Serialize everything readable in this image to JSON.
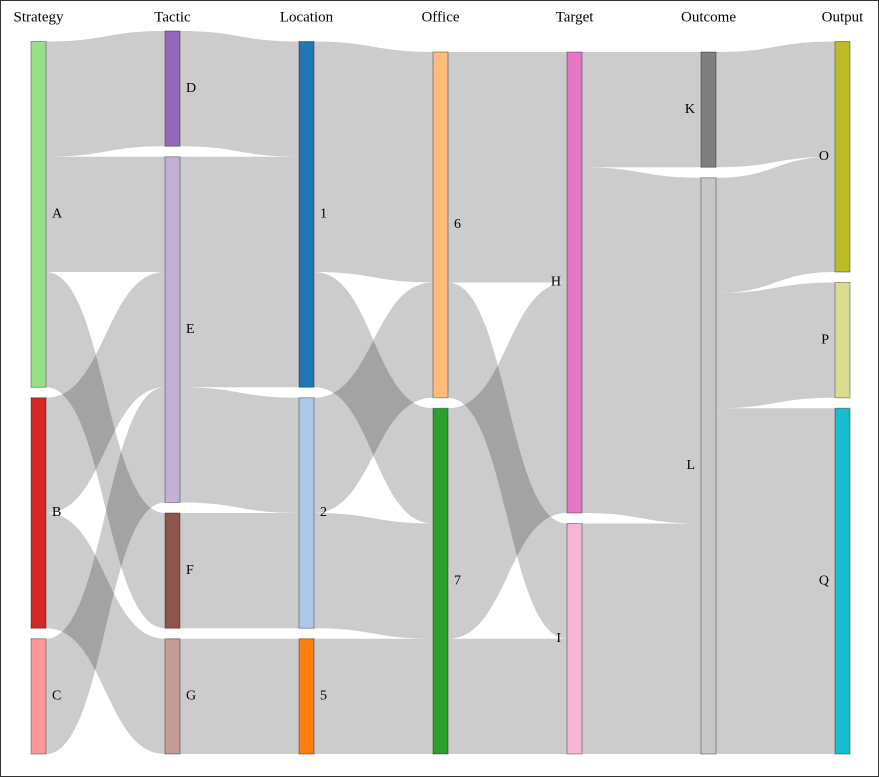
{
  "chart_data": {
    "type": "sankey",
    "columns": [
      "Strategy",
      "Tactic",
      "Location",
      "Office",
      "Target",
      "Outcome",
      "Output"
    ],
    "nodes": [
      {
        "name": "A",
        "column": 0,
        "color": "#98df8a"
      },
      {
        "name": "B",
        "column": 0,
        "color": "#d62728"
      },
      {
        "name": "C",
        "column": 0,
        "color": "#ff9896"
      },
      {
        "name": "D",
        "column": 1,
        "color": "#9467bd"
      },
      {
        "name": "E",
        "column": 1,
        "color": "#c5b0d5"
      },
      {
        "name": "F",
        "column": 1,
        "color": "#8c564b"
      },
      {
        "name": "G",
        "column": 1,
        "color": "#c49c94"
      },
      {
        "name": "1",
        "column": 2,
        "color": "#1f77b4"
      },
      {
        "name": "2",
        "column": 2,
        "color": "#aec7e8"
      },
      {
        "name": "5",
        "column": 2,
        "color": "#ff7f0e"
      },
      {
        "name": "6",
        "column": 3,
        "color": "#ffbb78"
      },
      {
        "name": "7",
        "column": 3,
        "color": "#2ca02c"
      },
      {
        "name": "H",
        "column": 4,
        "color": "#e377c2"
      },
      {
        "name": "I",
        "column": 4,
        "color": "#f7b6d2"
      },
      {
        "name": "K",
        "column": 5,
        "color": "#7f7f7f"
      },
      {
        "name": "L",
        "column": 5,
        "color": "#c7c7c7"
      },
      {
        "name": "O",
        "column": 6,
        "color": "#bcbd22"
      },
      {
        "name": "P",
        "column": 6,
        "color": "#dbdb8d"
      },
      {
        "name": "Q",
        "column": 6,
        "color": "#17becf"
      }
    ],
    "links": [
      {
        "source": 0,
        "target": 3,
        "value": 1
      },
      {
        "source": 0,
        "target": 4,
        "value": 1
      },
      {
        "source": 0,
        "target": 5,
        "value": 1
      },
      {
        "source": 1,
        "target": 4,
        "value": 1
      },
      {
        "source": 1,
        "target": 6,
        "value": 1
      },
      {
        "source": 2,
        "target": 4,
        "value": 1
      },
      {
        "source": 3,
        "target": 7,
        "value": 1
      },
      {
        "source": 4,
        "target": 7,
        "value": 2
      },
      {
        "source": 4,
        "target": 8,
        "value": 1
      },
      {
        "source": 5,
        "target": 8,
        "value": 1
      },
      {
        "source": 6,
        "target": 9,
        "value": 1
      },
      {
        "source": 7,
        "target": 10,
        "value": 2
      },
      {
        "source": 7,
        "target": 11,
        "value": 1
      },
      {
        "source": 8,
        "target": 10,
        "value": 1
      },
      {
        "source": 8,
        "target": 11,
        "value": 1
      },
      {
        "source": 9,
        "target": 11,
        "value": 1
      },
      {
        "source": 10,
        "target": 12,
        "value": 2
      },
      {
        "source": 10,
        "target": 13,
        "value": 1
      },
      {
        "source": 11,
        "target": 12,
        "value": 2
      },
      {
        "source": 11,
        "target": 13,
        "value": 1
      },
      {
        "source": 12,
        "target": 14,
        "value": 1
      },
      {
        "source": 12,
        "target": 15,
        "value": 3
      },
      {
        "source": 13,
        "target": 15,
        "value": 2
      },
      {
        "source": 14,
        "target": 16,
        "value": 1
      },
      {
        "source": 15,
        "target": 16,
        "value": 1
      },
      {
        "source": 15,
        "target": 17,
        "value": 1
      },
      {
        "source": 15,
        "target": 18,
        "value": 3
      }
    ]
  }
}
